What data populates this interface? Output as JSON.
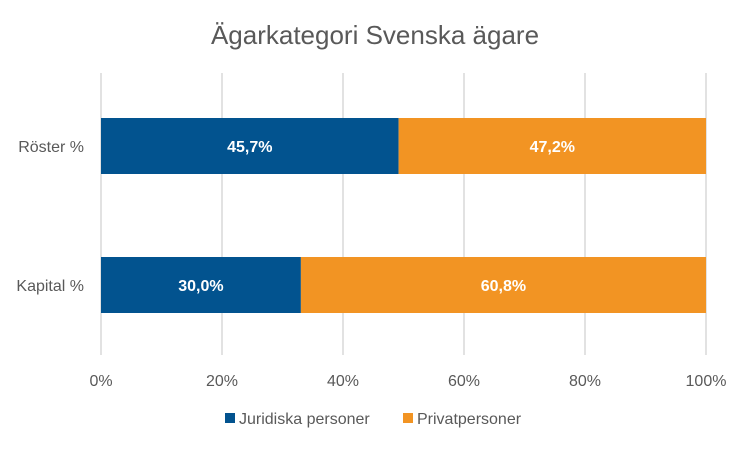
{
  "chart_data": {
    "type": "bar",
    "orientation": "horizontal",
    "stacked": true,
    "title": "Ägarkategori Svenska ägare",
    "categories": [
      "Röster %",
      "Kapital %"
    ],
    "series": [
      {
        "name": "Juridiska personer",
        "color": "#02538F",
        "values": [
          45.7,
          30.0
        ],
        "labels": [
          "45,7%",
          "30,0%"
        ]
      },
      {
        "name": "Privatpersoner",
        "color": "#F29423",
        "values": [
          47.2,
          60.8
        ],
        "labels": [
          "47,2%",
          "60,8%"
        ]
      }
    ],
    "xlim": [
      0,
      100
    ],
    "normalized_to_100": true,
    "x_ticks": [
      "0%",
      "20%",
      "40%",
      "60%",
      "80%",
      "100%"
    ],
    "grid": true,
    "legend_position": "bottom"
  }
}
